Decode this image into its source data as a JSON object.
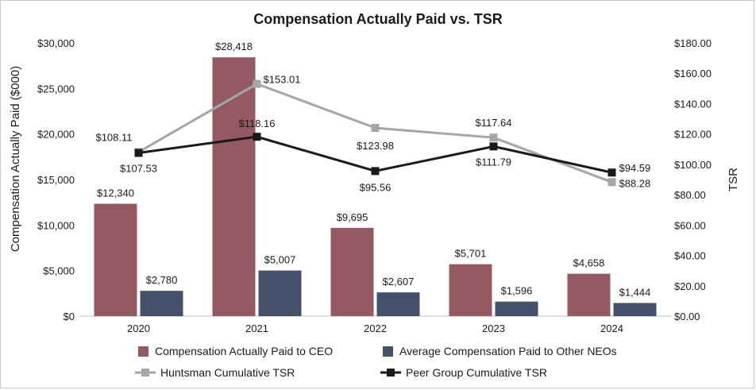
{
  "chart_data": {
    "type": "bar+line",
    "title": "Compensation Actually Paid vs. TSR",
    "categories": [
      "2020",
      "2021",
      "2022",
      "2023",
      "2024"
    ],
    "bar_series": [
      {
        "name": "Compensation Actually Paid to CEO",
        "values": [
          12340,
          28418,
          9695,
          5701,
          4658
        ],
        "labels": [
          "$12,340",
          "$28,418",
          "$9,695",
          "$5,701",
          "$4,658"
        ],
        "color": "#955a61"
      },
      {
        "name": "Average Compensation Paid to Other NEOs",
        "values": [
          2780,
          5007,
          2607,
          1596,
          1444
        ],
        "labels": [
          "$2,780",
          "$5,007",
          "$2,607",
          "$1,596",
          "$1,444"
        ],
        "color": "#45506b"
      }
    ],
    "line_series": [
      {
        "name": "Huntsman Cumulative TSR",
        "values": [
          108.11,
          153.01,
          123.98,
          117.64,
          88.28
        ],
        "labels": [
          "$108.11",
          "$153.01",
          "$123.98",
          "$117.64",
          "$88.28"
        ],
        "color": "#a6a6a6"
      },
      {
        "name": "Peer Group Cumulative TSR",
        "values": [
          107.53,
          118.16,
          95.56,
          111.79,
          94.59
        ],
        "labels": [
          "$107.53",
          "$118.16",
          "$95.56",
          "$111.79",
          "$94.59"
        ],
        "color": "#1a1a1a"
      }
    ],
    "y_left": {
      "label": "Compensation Actually Paid ($000)",
      "range": [
        0,
        30000
      ],
      "ticks": [
        0,
        5000,
        10000,
        15000,
        20000,
        25000,
        30000
      ],
      "tick_labels": [
        "$0",
        "$5,000",
        "$10,000",
        "$15,000",
        "$20,000",
        "$25,000",
        "$30,000"
      ]
    },
    "y_right": {
      "label": "TSR",
      "range": [
        0,
        180
      ],
      "ticks": [
        0,
        20,
        40,
        60,
        80,
        100,
        120,
        140,
        160,
        180
      ],
      "tick_labels": [
        "$0.00",
        "$20.00",
        "$40.00",
        "$60.00",
        "$80.00",
        "$100.00",
        "$120.00",
        "$140.00",
        "$160.00",
        "$180.00"
      ]
    },
    "grid": false,
    "legend_position": "bottom"
  }
}
